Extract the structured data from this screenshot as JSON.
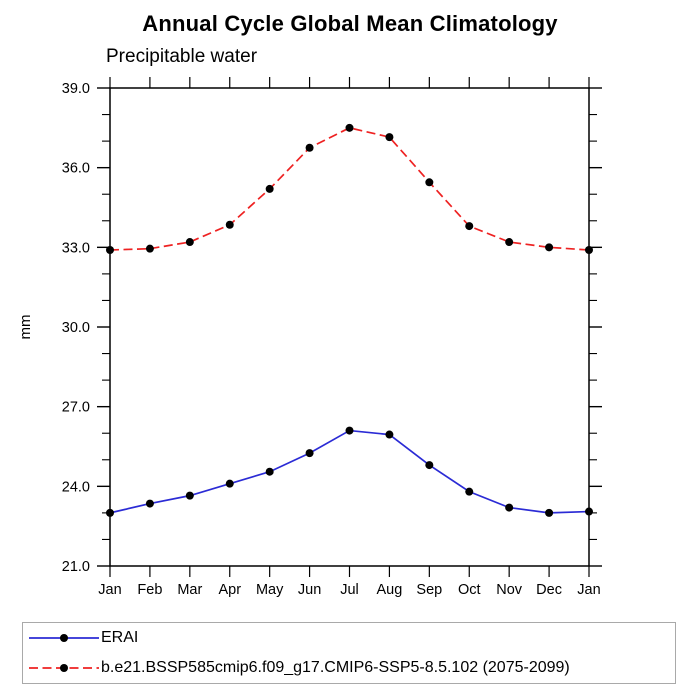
{
  "title": "Annual Cycle Global Mean Climatology",
  "subtitle": "Precipitable water",
  "chart_data": {
    "type": "line",
    "title": "Annual Cycle Global Mean Climatology",
    "subtitle": "Precipitable water",
    "xlabel": "",
    "ylabel": "mm",
    "x_categories": [
      "Jan",
      "Feb",
      "Mar",
      "Apr",
      "May",
      "Jun",
      "Jul",
      "Aug",
      "Sep",
      "Oct",
      "Nov",
      "Dec",
      "Jan"
    ],
    "ylim": [
      21.0,
      39.0
    ],
    "y_major_step": 3,
    "y_minor_step": 1,
    "y_major_tick_labels": [
      "21.0",
      "24.0",
      "27.0",
      "30.0",
      "33.0",
      "36.0",
      "39.0"
    ],
    "grid": "off",
    "legend_position": "bottom",
    "axis_color": "#000000",
    "marker_color": "#000000",
    "series": [
      {
        "name": "ERAI",
        "color": "#2b2bd5",
        "line_style": "solid",
        "marker": "filled-circle",
        "values": [
          23.0,
          23.35,
          23.65,
          24.1,
          24.55,
          25.25,
          26.1,
          25.95,
          24.8,
          23.8,
          23.2,
          23.0,
          23.05
        ]
      },
      {
        "name": "b.e21.BSSP585cmip6.f09_g17.CMIP6-SSP5-8.5.102 (2075-2099)",
        "color": "#ee2222",
        "line_style": "dashed",
        "marker": "filled-circle",
        "values": [
          32.9,
          32.95,
          33.2,
          33.85,
          35.2,
          36.75,
          37.5,
          37.15,
          35.45,
          33.8,
          33.2,
          33.0,
          32.9
        ]
      }
    ]
  }
}
